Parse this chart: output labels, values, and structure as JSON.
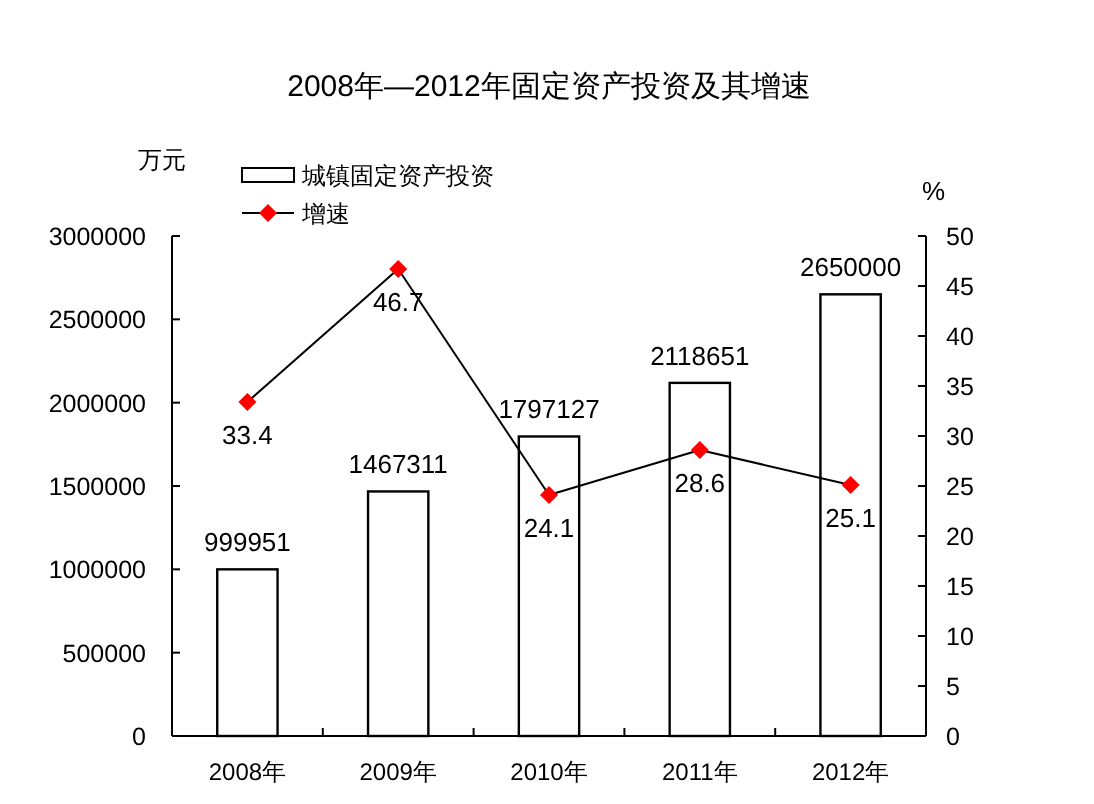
{
  "chart_data": {
    "type": "bar",
    "title": "2008年—2012年固定资产投资及其增速",
    "ylabel": "万元",
    "y2label": "%",
    "categories": [
      "2008年",
      "2009年",
      "2010年",
      "2011年",
      "2012年"
    ],
    "series": [
      {
        "name": "城镇固定资产投资",
        "color": "#ffffff",
        "values": [
          999951,
          1467311,
          1797127,
          2118651,
          2650000
        ]
      },
      {
        "name": "增速",
        "type": "line",
        "axis": "y2",
        "color": "#000000",
        "colors": [
          "#ff0000",
          "#ff0000",
          "#ff0000",
          "#ff0000",
          "#ff0000"
        ],
        "values": [
          33.4,
          46.7,
          24.1,
          28.6,
          25.1
        ]
      }
    ],
    "ylim": [
      0,
      3000000
    ],
    "yticks": [
      0,
      500000,
      1000000,
      1500000,
      2000000,
      2500000,
      3000000
    ],
    "y2lim": [
      0,
      50
    ],
    "y2ticks": [
      0,
      5,
      10,
      15,
      20,
      25,
      30,
      35,
      40,
      45,
      50
    ],
    "data_labels": true,
    "legend": "top left",
    "marker": "diamond"
  }
}
